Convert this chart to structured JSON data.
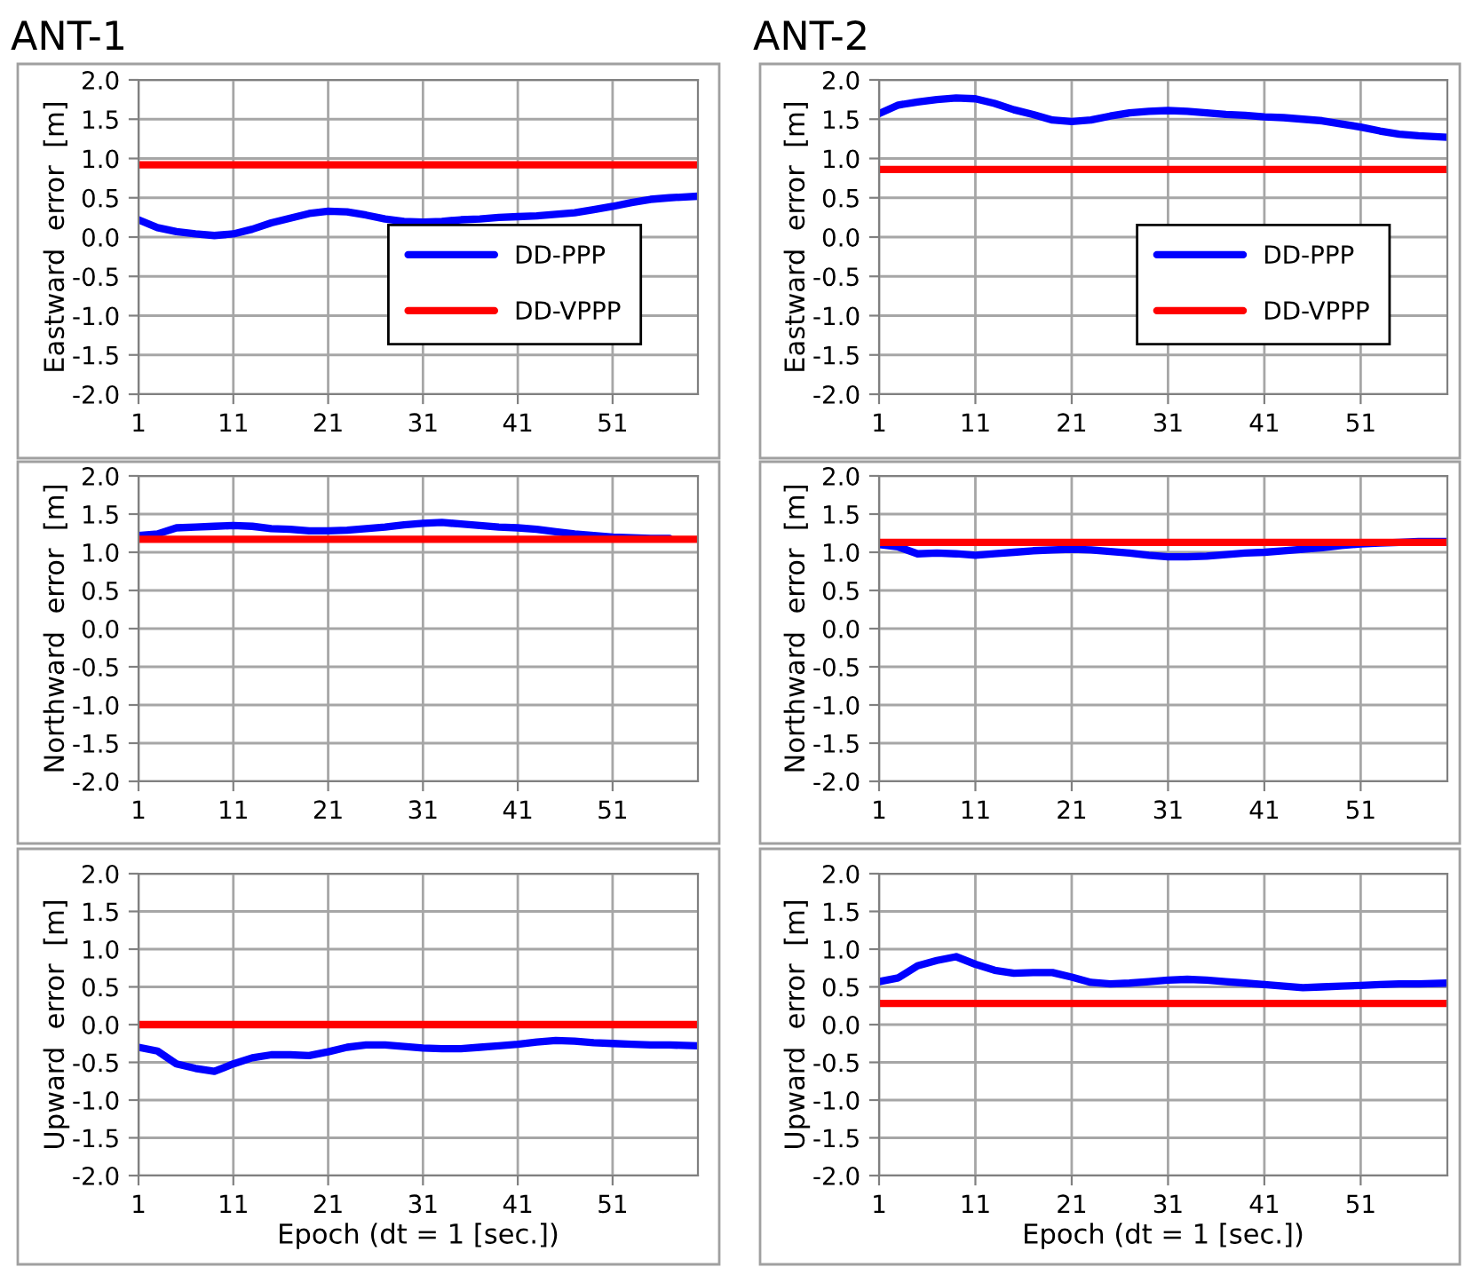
{
  "chart_data": [
    {
      "type": "line",
      "title": "ANT-1",
      "ylabel": "Eastward  error  [m]",
      "xlim": [
        1,
        60
      ],
      "xticks": [
        1,
        11,
        21,
        31,
        41,
        51
      ],
      "ylim": [
        -2,
        2
      ],
      "yticks": [
        {
          "value": -2,
          "label": "-2.0"
        },
        {
          "value": -1.5,
          "label": "-1.5"
        },
        {
          "value": -1,
          "label": "-1.0"
        },
        {
          "value": -0.5,
          "label": "-0.5"
        },
        {
          "value": 0,
          "label": "0.0"
        },
        {
          "value": 0.5,
          "label": "0.5"
        },
        {
          "value": 1,
          "label": "1.0"
        },
        {
          "value": 1.5,
          "label": "1.5"
        },
        {
          "value": 2,
          "label": "2.0"
        }
      ],
      "grid": true,
      "legend": "bottom right",
      "marker": "none",
      "line_style": "solid",
      "series": [
        {
          "name": "DD-PPP",
          "color": "#0000ff",
          "x": [
            1,
            3,
            5,
            7,
            9,
            11,
            13,
            15,
            17,
            19,
            21,
            23,
            25,
            27,
            29,
            31,
            33,
            35,
            37,
            39,
            41,
            43,
            45,
            47,
            49,
            51,
            53,
            55,
            57,
            60
          ],
          "values": [
            0.22,
            0.12,
            0.07,
            0.04,
            0.02,
            0.04,
            0.1,
            0.18,
            0.24,
            0.3,
            0.33,
            0.32,
            0.28,
            0.23,
            0.2,
            0.19,
            0.2,
            0.22,
            0.23,
            0.25,
            0.26,
            0.27,
            0.29,
            0.31,
            0.35,
            0.39,
            0.44,
            0.48,
            0.5,
            0.52
          ]
        },
        {
          "name": "DD-VPPP",
          "color": "#ff0000",
          "x": [
            1,
            60
          ],
          "values": [
            0.92,
            0.92
          ]
        }
      ]
    },
    {
      "type": "line",
      "title": "ANT-2",
      "ylabel": "Eastward  error  [m]",
      "xlim": [
        1,
        60
      ],
      "xticks": [
        1,
        11,
        21,
        31,
        41,
        51
      ],
      "ylim": [
        -2,
        2
      ],
      "yticks": [
        {
          "value": -2,
          "label": "-2.0"
        },
        {
          "value": -1.5,
          "label": "-1.5"
        },
        {
          "value": -1,
          "label": "-1.0"
        },
        {
          "value": -0.5,
          "label": "-0.5"
        },
        {
          "value": 0,
          "label": "0.0"
        },
        {
          "value": 0.5,
          "label": "0.5"
        },
        {
          "value": 1,
          "label": "1.0"
        },
        {
          "value": 1.5,
          "label": "1.5"
        },
        {
          "value": 2,
          "label": "2.0"
        }
      ],
      "grid": true,
      "legend": "bottom right",
      "marker": "none",
      "line_style": "solid",
      "series": [
        {
          "name": "DD-PPP",
          "color": "#0000ff",
          "x": [
            1,
            3,
            5,
            7,
            9,
            11,
            13,
            15,
            17,
            19,
            21,
            23,
            25,
            27,
            29,
            31,
            33,
            35,
            37,
            39,
            41,
            43,
            45,
            47,
            49,
            51,
            53,
            55,
            57,
            60
          ],
          "values": [
            1.57,
            1.68,
            1.72,
            1.75,
            1.77,
            1.76,
            1.7,
            1.62,
            1.56,
            1.49,
            1.47,
            1.49,
            1.54,
            1.58,
            1.6,
            1.61,
            1.6,
            1.58,
            1.56,
            1.55,
            1.53,
            1.52,
            1.5,
            1.48,
            1.44,
            1.4,
            1.35,
            1.31,
            1.29,
            1.27
          ]
        },
        {
          "name": "DD-VPPP",
          "color": "#ff0000",
          "x": [
            1,
            60
          ],
          "values": [
            0.86,
            0.86
          ]
        }
      ]
    },
    {
      "type": "line",
      "ylabel": "Northward  error  [m]",
      "xlim": [
        1,
        60
      ],
      "xticks": [
        1,
        11,
        21,
        31,
        41,
        51
      ],
      "ylim": [
        -2,
        2
      ],
      "yticks": [
        {
          "value": -2,
          "label": "-2.0"
        },
        {
          "value": -1.5,
          "label": "-1.5"
        },
        {
          "value": -1,
          "label": "-1.0"
        },
        {
          "value": -0.5,
          "label": "-0.5"
        },
        {
          "value": 0,
          "label": "0.0"
        },
        {
          "value": 0.5,
          "label": "0.5"
        },
        {
          "value": 1,
          "label": "1.0"
        },
        {
          "value": 1.5,
          "label": "1.5"
        },
        {
          "value": 2,
          "label": "2.0"
        }
      ],
      "grid": true,
      "marker": "none",
      "line_style": "solid",
      "series": [
        {
          "color": "#0000ff",
          "x": [
            1,
            3,
            5,
            7,
            9,
            11,
            13,
            15,
            17,
            19,
            21,
            23,
            25,
            27,
            29,
            31,
            33,
            35,
            37,
            39,
            41,
            43,
            45,
            47,
            49,
            51,
            53,
            55,
            57
          ],
          "values": [
            1.22,
            1.24,
            1.32,
            1.33,
            1.34,
            1.35,
            1.34,
            1.31,
            1.3,
            1.28,
            1.28,
            1.29,
            1.31,
            1.33,
            1.36,
            1.38,
            1.39,
            1.37,
            1.35,
            1.33,
            1.32,
            1.3,
            1.27,
            1.24,
            1.22,
            1.2,
            1.19,
            1.18,
            1.18
          ]
        },
        {
          "color": "#ff0000",
          "x": [
            1,
            60
          ],
          "values": [
            1.17,
            1.17
          ]
        }
      ]
    },
    {
      "type": "line",
      "ylabel": "Northward  error  [m]",
      "xlim": [
        1,
        60
      ],
      "xticks": [
        1,
        11,
        21,
        31,
        41,
        51
      ],
      "ylim": [
        -2,
        2
      ],
      "yticks": [
        {
          "value": -2,
          "label": "-2.0"
        },
        {
          "value": -1.5,
          "label": "-1.5"
        },
        {
          "value": -1,
          "label": "-1.0"
        },
        {
          "value": -0.5,
          "label": "-0.5"
        },
        {
          "value": 0,
          "label": "0.0"
        },
        {
          "value": 0.5,
          "label": "0.5"
        },
        {
          "value": 1,
          "label": "1.0"
        },
        {
          "value": 1.5,
          "label": "1.5"
        },
        {
          "value": 2,
          "label": "2.0"
        }
      ],
      "grid": true,
      "marker": "none",
      "line_style": "solid",
      "series": [
        {
          "color": "#0000ff",
          "x": [
            1,
            3,
            5,
            7,
            9,
            11,
            13,
            15,
            17,
            19,
            21,
            23,
            25,
            27,
            29,
            31,
            33,
            35,
            37,
            39,
            41,
            43,
            45,
            47,
            49,
            51,
            53,
            55,
            57,
            60
          ],
          "values": [
            1.1,
            1.07,
            0.98,
            0.99,
            0.98,
            0.96,
            0.98,
            1.0,
            1.02,
            1.03,
            1.04,
            1.03,
            1.01,
            0.99,
            0.96,
            0.94,
            0.94,
            0.95,
            0.97,
            0.99,
            1.0,
            1.02,
            1.04,
            1.06,
            1.09,
            1.11,
            1.12,
            1.13,
            1.14,
            1.14
          ]
        },
        {
          "color": "#ff0000",
          "x": [
            1,
            60
          ],
          "values": [
            1.13,
            1.13
          ]
        }
      ]
    },
    {
      "type": "line",
      "ylabel": "Upward  error  [m]",
      "xlabel": "Epoch (dt = 1 [sec.])",
      "xlim": [
        1,
        60
      ],
      "xticks": [
        1,
        11,
        21,
        31,
        41,
        51
      ],
      "ylim": [
        -2,
        2
      ],
      "yticks": [
        {
          "value": -2,
          "label": "-2.0"
        },
        {
          "value": -1.5,
          "label": "-1.5"
        },
        {
          "value": -1,
          "label": "-1.0"
        },
        {
          "value": -0.5,
          "label": "-0.5"
        },
        {
          "value": 0,
          "label": "0.0"
        },
        {
          "value": 0.5,
          "label": "0.5"
        },
        {
          "value": 1,
          "label": "1.0"
        },
        {
          "value": 1.5,
          "label": "1.5"
        },
        {
          "value": 2,
          "label": "2.0"
        }
      ],
      "grid": true,
      "marker": "none",
      "line_style": "solid",
      "series": [
        {
          "color": "#0000ff",
          "x": [
            1,
            3,
            5,
            7,
            9,
            11,
            13,
            15,
            17,
            19,
            21,
            23,
            25,
            27,
            29,
            31,
            33,
            35,
            37,
            39,
            41,
            43,
            45,
            47,
            49,
            51,
            53,
            55,
            57,
            60
          ],
          "values": [
            -0.3,
            -0.35,
            -0.52,
            -0.58,
            -0.62,
            -0.52,
            -0.44,
            -0.4,
            -0.4,
            -0.41,
            -0.36,
            -0.3,
            -0.27,
            -0.27,
            -0.29,
            -0.31,
            -0.32,
            -0.32,
            -0.3,
            -0.28,
            -0.26,
            -0.23,
            -0.21,
            -0.22,
            -0.24,
            -0.25,
            -0.26,
            -0.27,
            -0.27,
            -0.28
          ]
        },
        {
          "color": "#ff0000",
          "x": [
            1,
            60
          ],
          "values": [
            0,
            0
          ]
        }
      ]
    },
    {
      "type": "line",
      "ylabel": "Upward  error  [m]",
      "xlabel": "Epoch (dt = 1 [sec.])",
      "xlim": [
        1,
        60
      ],
      "xticks": [
        1,
        11,
        21,
        31,
        41,
        51
      ],
      "ylim": [
        -2,
        2
      ],
      "yticks": [
        {
          "value": -2,
          "label": "-2.0"
        },
        {
          "value": -1.5,
          "label": "-1.5"
        },
        {
          "value": -1,
          "label": "-1.0"
        },
        {
          "value": -0.5,
          "label": "-0.5"
        },
        {
          "value": 0,
          "label": "0.0"
        },
        {
          "value": 0.5,
          "label": "0.5"
        },
        {
          "value": 1,
          "label": "1.0"
        },
        {
          "value": 1.5,
          "label": "1.5"
        },
        {
          "value": 2,
          "label": "2.0"
        }
      ],
      "grid": true,
      "marker": "none",
      "line_style": "solid",
      "series": [
        {
          "color": "#0000ff",
          "x": [
            1,
            3,
            5,
            7,
            9,
            11,
            13,
            15,
            17,
            19,
            21,
            23,
            25,
            27,
            29,
            31,
            33,
            35,
            37,
            39,
            41,
            43,
            45,
            47,
            49,
            51,
            53,
            55,
            57,
            60
          ],
          "values": [
            0.57,
            0.62,
            0.78,
            0.85,
            0.9,
            0.8,
            0.72,
            0.68,
            0.69,
            0.69,
            0.63,
            0.56,
            0.54,
            0.55,
            0.57,
            0.59,
            0.6,
            0.59,
            0.57,
            0.55,
            0.53,
            0.51,
            0.49,
            0.5,
            0.51,
            0.52,
            0.53,
            0.54,
            0.54,
            0.55
          ]
        },
        {
          "color": "#ff0000",
          "x": [
            1,
            60
          ],
          "values": [
            0.28,
            0.28
          ]
        }
      ]
    }
  ]
}
